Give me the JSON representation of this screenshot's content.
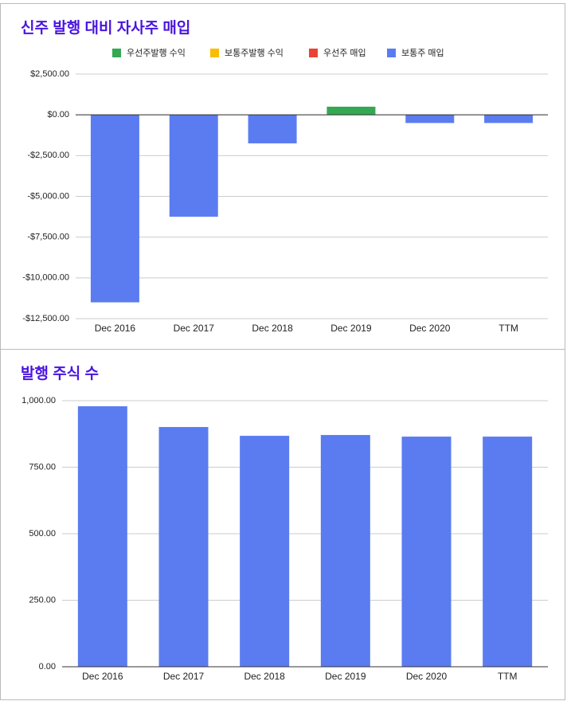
{
  "chart_data": [
    {
      "type": "bar",
      "title": "신주 발행 대비 자사주 매입",
      "stacked": true,
      "grid": true,
      "legend": "top",
      "categories": [
        "Dec 2016",
        "Dec 2017",
        "Dec 2018",
        "Dec 2019",
        "Dec 2020",
        "TTM"
      ],
      "series": [
        {
          "name": "우선주발행 수익",
          "color": "#34a853",
          "values": [
            0,
            0,
            0,
            500,
            0,
            0
          ]
        },
        {
          "name": "보통주발행 수익",
          "color": "#fbbc04",
          "values": [
            0,
            0,
            0,
            0,
            0,
            0
          ]
        },
        {
          "name": "우선주 매입",
          "color": "#ea4335",
          "values": [
            0,
            0,
            0,
            0,
            0,
            0
          ]
        },
        {
          "name": "보통주 매입",
          "color": "#5b7cf0",
          "values": [
            -11500,
            -6250,
            -1750,
            0,
            -500,
            -500
          ]
        }
      ],
      "ylim": [
        -12500,
        2500
      ],
      "yticks": [
        {
          "value": 2500,
          "label": "$2,500.00"
        },
        {
          "value": 0,
          "label": "$0.00"
        },
        {
          "value": -2500,
          "label": "-$2,500.00"
        },
        {
          "value": -5000,
          "label": "-$5,000.00"
        },
        {
          "value": -7500,
          "label": "-$7,500.00"
        },
        {
          "value": -10000,
          "label": "-$10,000.00"
        },
        {
          "value": -12500,
          "label": "-$12,500.00"
        }
      ]
    },
    {
      "type": "bar",
      "title": "발행 주식 수",
      "grid": true,
      "color": "#5b7cf0",
      "categories": [
        "Dec 2016",
        "Dec 2017",
        "Dec 2018",
        "Dec 2019",
        "Dec 2020",
        "TTM"
      ],
      "values": [
        979,
        901,
        868,
        871,
        865,
        865
      ],
      "ylim": [
        0,
        1000
      ],
      "yticks": [
        {
          "value": 0,
          "label": "0.00"
        },
        {
          "value": 250,
          "label": "250.00"
        },
        {
          "value": 500,
          "label": "500.00"
        },
        {
          "value": 750,
          "label": "750.00"
        },
        {
          "value": 1000,
          "label": "1,000.00"
        }
      ]
    }
  ]
}
